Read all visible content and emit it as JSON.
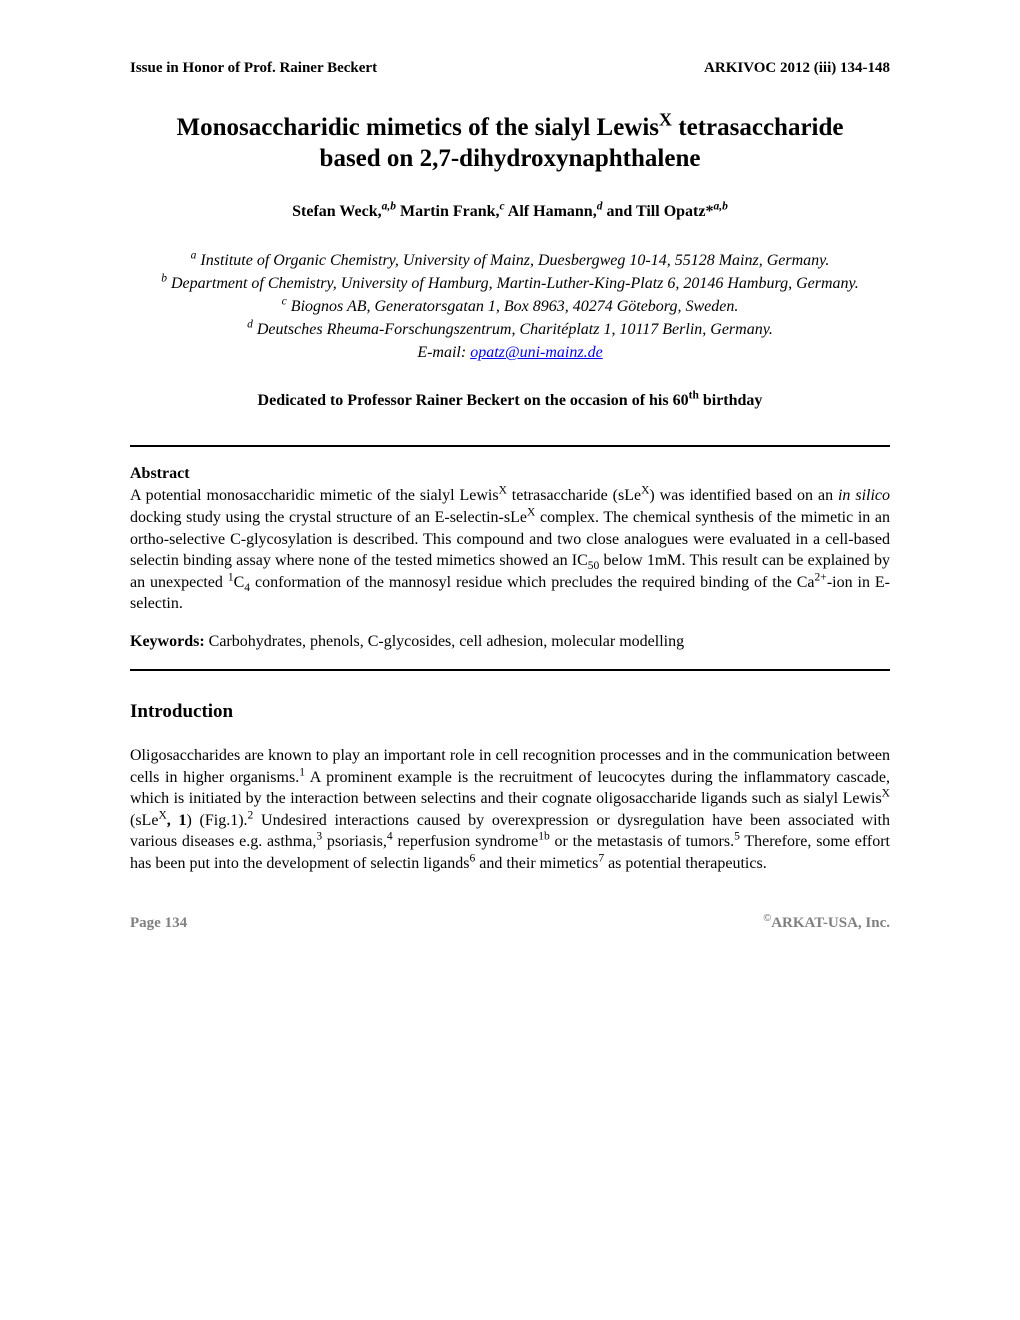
{
  "header": {
    "left": "Issue in Honor of Prof. Rainer Beckert",
    "right": "ARKIVOC 2012 (iii) 134-148"
  },
  "title": {
    "line1_pre": "Monosaccharidic mimetics of the sialyl Lewis",
    "line1_sup": "X",
    "line1_post": " tetrasaccharide",
    "line2": "based on 2,7-dihydroxynaphthalene"
  },
  "authors": {
    "a1_name": "Stefan Weck,",
    "a1_sup": "a,b",
    "a2_name": " Martin Frank,",
    "a2_sup": "c",
    "a3_name": " Alf Hamann,",
    "a3_sup": "d",
    "a4_name": " and Till Opatz*",
    "a4_sup": "a,b"
  },
  "affiliations": {
    "a_sup": "a",
    "a_text": " Institute of Organic Chemistry, University of Mainz, Duesbergweg 10-14, 55128 Mainz, Germany.",
    "b_sup": "b",
    "b_text": " Department of Chemistry, University of Hamburg, Martin-Luther-King-Platz 6, 20146 Hamburg, Germany.",
    "c_sup": "c",
    "c_text": " Biognos AB, Generatorsgatan 1, Box 8963, 40274 Göteborg, Sweden.",
    "d_sup": "d",
    "d_text": " Deutsches Rheuma-Forschungszentrum, Charitéplatz 1, 10117 Berlin, Germany.",
    "email_label": "E-mail: ",
    "email": "opatz@uni-mainz.de"
  },
  "dedication": {
    "pre": "Dedicated to Professor Rainer Beckert on the occasion of his 60",
    "sup": "th",
    "post": " birthday"
  },
  "abstract": {
    "heading": "Abstract",
    "p1a": "A potential monosaccharidic mimetic of the sialyl Lewis",
    "p1a_sup": "X",
    "p1b": " tetrasaccharide (sLe",
    "p1b_sup": "X",
    "p1c": ") was identified based on an ",
    "p1_italic1": "in silico",
    "p1d": " docking study using the crystal structure of an E-selectin-sLe",
    "p1d_sup": "X",
    "p1e": " complex. The chemical synthesis of the mimetic in an ortho-selective C-glycosylation is described. This compound and two close analogues were evaluated in a cell-based selectin binding assay where none of the tested mimetics showed an IC",
    "p1e_sub": "50",
    "p1f": " below 1mM. This result can be explained by an unexpected ",
    "p1f_sup": "1",
    "p1g": "C",
    "p1g_sub": "4",
    "p1h": " conformation of the mannosyl residue which precludes the required binding of the Ca",
    "p1h_sup": "2+",
    "p1i": "-ion in E-selectin."
  },
  "keywords": {
    "label": "Keywords:",
    "text": " Carbohydrates, phenols, C-glycosides, cell adhesion, molecular modelling"
  },
  "introduction": {
    "heading": "Introduction",
    "p1a": "Oligosaccharides are known to play an important role in cell recognition processes and in the communication between cells in higher organisms.",
    "p1a_sup": "1",
    "p1b": " A prominent example is the recruitment of leucocytes during the inflammatory cascade, which is initiated by the interaction between selectins and their cognate oligosaccharide ligands such as sialyl Lewis",
    "p1b_sup": "X",
    "p1c": " (sLe",
    "p1c_sup": "X",
    "p1d_bold": ", 1",
    "p1e": ") (Fig.1).",
    "p1e_sup": "2",
    "p1f": " Undesired interactions caused by overexpression or dysregulation have been associated with various diseases e.g. asthma,",
    "p1f_sup": "3",
    "p1g": " psoriasis,",
    "p1g_sup": "4",
    "p1h": " reperfusion syndrome",
    "p1h_sup": "1b",
    "p1i": " or the metastasis of tumors.",
    "p1i_sup": "5",
    "p1j": " Therefore, some effort has been put into the development of selectin ligands",
    "p1j_sup": "6",
    "p1k": " and their mimetics",
    "p1k_sup": "7",
    "p1l": " as potential therapeutics."
  },
  "footer": {
    "page": "Page 134",
    "copyright_sup": "©",
    "publisher": "ARKAT-USA, Inc."
  },
  "colors": {
    "text": "#000000",
    "link": "#0000ee",
    "footer": "#808080",
    "background": "#ffffff",
    "rule": "#000000"
  },
  "typography": {
    "body_font": "Times New Roman",
    "title_fontsize": 25,
    "body_fontsize": 16,
    "header_fontsize": 15
  }
}
